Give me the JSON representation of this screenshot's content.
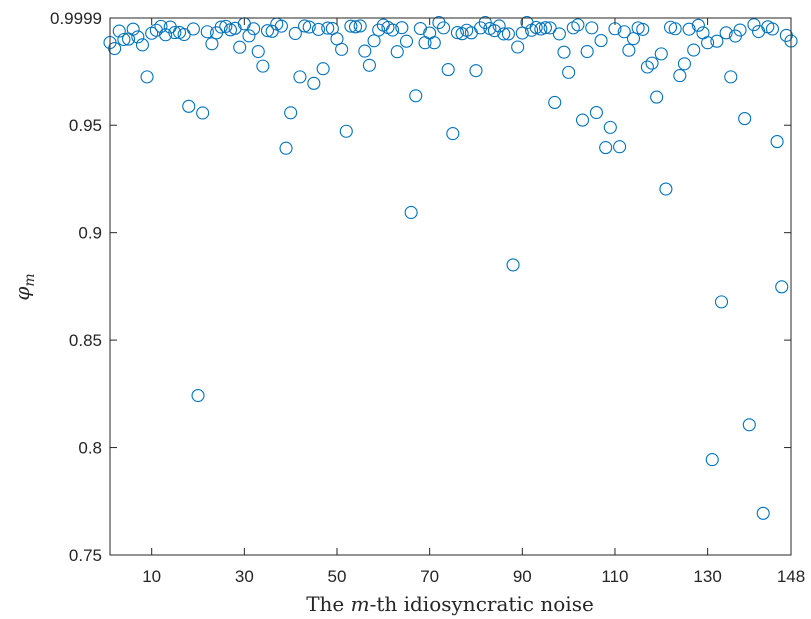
{
  "chart_data": {
    "type": "scatter",
    "xlabel": "The m-th idiosyncratic noise",
    "xlabel_parts": [
      "The ",
      "m",
      "-th idiosyncratic noise"
    ],
    "ylabel_parts": [
      "φ",
      "m"
    ],
    "xlim": [
      1,
      148
    ],
    "ylim": [
      0.75,
      0.9999
    ],
    "x_ticks": [
      10,
      30,
      50,
      70,
      90,
      110,
      130,
      148
    ],
    "y_ticks": [
      0.75,
      0.8,
      0.85,
      0.9,
      0.95,
      0.9999
    ],
    "y_tick_labels": [
      "0.75",
      "0.8",
      "0.85",
      "0.9",
      "0.95",
      "0.9999"
    ],
    "marker": "circle-open",
    "color": "#0072BD",
    "grid": false,
    "series": [
      {
        "x": [
          1,
          2,
          3,
          4,
          5,
          6,
          7,
          8,
          9,
          10,
          11,
          12,
          13,
          14,
          15,
          16,
          17,
          18,
          19,
          20,
          21,
          22,
          23,
          24,
          25,
          26,
          27,
          28,
          29,
          30,
          31,
          32,
          33,
          34,
          35,
          36,
          37,
          38,
          39,
          40,
          41,
          42,
          43,
          44,
          45,
          46,
          47,
          48,
          49,
          50,
          51,
          52,
          53,
          54,
          55,
          56,
          57,
          58,
          59,
          60,
          61,
          62,
          63,
          64,
          65,
          66,
          67,
          68,
          69,
          70,
          71,
          72,
          73,
          74,
          75,
          76,
          77,
          78,
          79,
          80,
          81,
          82,
          83,
          84,
          85,
          86,
          87,
          88,
          89,
          90,
          91,
          92,
          93,
          94,
          95,
          96,
          97,
          98,
          99,
          100,
          101,
          102,
          103,
          104,
          105,
          106,
          107,
          108,
          109,
          110,
          111,
          112,
          113,
          114,
          115,
          116,
          117,
          118,
          119,
          120,
          121,
          122,
          123,
          124,
          125,
          126,
          127,
          128,
          129,
          130,
          131,
          132,
          133,
          134,
          135,
          136,
          137,
          138,
          139,
          140,
          141,
          142,
          143,
          144,
          145,
          146,
          147,
          148
        ],
        "y": [
          0.9885,
          0.9857,
          0.9938,
          0.9899,
          0.9901,
          0.9947,
          0.9911,
          0.9874,
          0.9725,
          0.9928,
          0.9942,
          0.996,
          0.9921,
          0.9957,
          0.9931,
          0.9932,
          0.9922,
          0.9588,
          0.9948,
          0.8242,
          0.9557,
          0.9935,
          0.9879,
          0.993,
          0.9957,
          0.996,
          0.9944,
          0.9951,
          0.9863,
          0.9972,
          0.9916,
          0.9949,
          0.9843,
          0.9775,
          0.994,
          0.9937,
          0.9971,
          0.9961,
          0.9393,
          0.9558,
          0.9927,
          0.9725,
          0.9962,
          0.9957,
          0.9695,
          0.9946,
          0.9763,
          0.9952,
          0.995,
          0.9902,
          0.9853,
          0.9472,
          0.9961,
          0.9958,
          0.9962,
          0.9845,
          0.9779,
          0.9893,
          0.9943,
          0.9966,
          0.9955,
          0.9943,
          0.9842,
          0.9954,
          0.9891,
          0.9094,
          0.9637,
          0.995,
          0.9884,
          0.9929,
          0.9884,
          0.9978,
          0.9953,
          0.9759,
          0.9461,
          0.9931,
          0.9926,
          0.9942,
          0.993,
          0.9754,
          0.9953,
          0.9978,
          0.995,
          0.994,
          0.9962,
          0.9925,
          0.9925,
          0.885,
          0.9864,
          0.9929,
          0.9978,
          0.9942,
          0.9955,
          0.9948,
          0.9954,
          0.9953,
          0.9606,
          0.9925,
          0.984,
          0.9746,
          0.9953,
          0.9967,
          0.9524,
          0.9843,
          0.9953,
          0.9559,
          0.9894,
          0.9396,
          0.949,
          0.9949,
          0.94,
          0.9935,
          0.9849,
          0.9903,
          0.9953,
          0.9946,
          0.9771,
          0.9789,
          0.9631,
          0.9832,
          0.9203,
          0.9956,
          0.9949,
          0.9731,
          0.9786,
          0.9947,
          0.985,
          0.9965,
          0.993,
          0.9884,
          0.7944,
          0.9891,
          0.8678,
          0.993,
          0.9725,
          0.9915,
          0.9943,
          0.9531,
          0.8106,
          0.9968,
          0.9936,
          0.7694,
          0.9958,
          0.9948,
          0.9424,
          0.8748,
          0.9918,
          0.9892
        ]
      }
    ]
  }
}
